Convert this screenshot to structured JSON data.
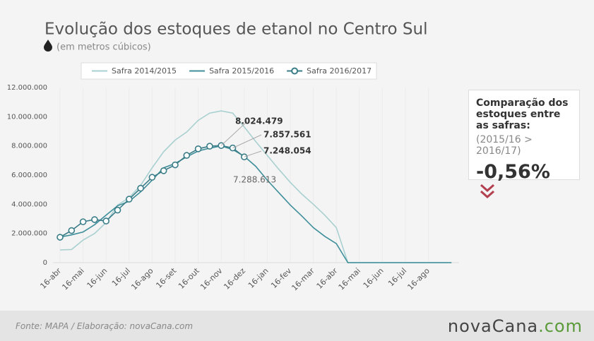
{
  "chart_data": {
    "type": "line",
    "title": "Evolução dos estoques de etanol no Centro Sul",
    "subtitle": "(em metros cúbicos)",
    "categories": [
      "16-abr",
      null,
      "16-mai",
      null,
      "16-jun",
      null,
      "16-jul",
      null,
      "16-ago",
      null,
      "16-set",
      null,
      "16-out",
      null,
      "16-nov",
      null,
      "16-dez",
      null,
      "16-jan",
      null,
      "16-fev",
      null,
      "16-mar",
      null,
      "16-abr",
      null,
      "16-mai",
      null,
      "16-jun",
      null,
      "16-jul",
      null,
      "16-ago",
      null,
      null
    ],
    "ylim": [
      0,
      12000000
    ],
    "yticks": [
      0,
      {
        "value": 2000000,
        "label": "2.000.000"
      },
      {
        "value": 4000000,
        "label": "4.000.000"
      },
      {
        "value": 6000000,
        "label": "6.000.000"
      },
      {
        "value": 8000000,
        "label": "8.000.000"
      },
      {
        "value": 10000000,
        "label": "10.000.000"
      },
      {
        "value": 12000000,
        "label": "12.000.000"
      }
    ],
    "grid": "x",
    "legend": "top",
    "series": [
      {
        "name": "Safra 2014/2015",
        "color": "#a9d0d0",
        "marker": false,
        "values": [
          870000,
          900000,
          1550000,
          2000000,
          2750000,
          3950000,
          4450000,
          5300000,
          6500000,
          7600000,
          8400000,
          8950000,
          9750000,
          10250000,
          10400000,
          10250000,
          9300000,
          8300000,
          7350000,
          6400000,
          5500000,
          4700000,
          4000000,
          3250000,
          2400000,
          0,
          0,
          0,
          0,
          0,
          0,
          0,
          0,
          0,
          0
        ]
      },
      {
        "name": "Safra 2015/2016",
        "color": "#3f8f9a",
        "marker": false,
        "values": [
          1750000,
          1900000,
          2100000,
          2600000,
          3250000,
          3900000,
          4200000,
          4850000,
          5650000,
          6500000,
          6800000,
          7250000,
          7650000,
          7850000,
          8000000,
          7750000,
          7288613,
          6600000,
          5650000,
          4800000,
          3950000,
          3200000,
          2400000,
          1800000,
          1300000,
          0,
          0,
          0,
          0,
          0,
          0,
          0,
          0,
          0,
          0
        ],
        "value_labels": [
          null,
          null,
          null,
          null,
          null,
          null,
          null,
          null,
          null,
          null,
          null,
          null,
          null,
          null,
          null,
          null,
          "7.288.613",
          null,
          null,
          null,
          null,
          null,
          null,
          null,
          null,
          null,
          null,
          null,
          null,
          null,
          null,
          null,
          null,
          null,
          null
        ]
      },
      {
        "name": "Safra 2016/2017",
        "color": "#3a7d88",
        "marker": true,
        "values": [
          1740000,
          2200000,
          2800000,
          2950000,
          2850000,
          3600000,
          4350000,
          5100000,
          5850000,
          6300000,
          6700000,
          7350000,
          7800000,
          7980000,
          8024479,
          7857561,
          7248054,
          null,
          null,
          null,
          null,
          null,
          null,
          null,
          null,
          null,
          null,
          null,
          null,
          null,
          null,
          null,
          null,
          null,
          null
        ],
        "value_labels": [
          null,
          null,
          null,
          null,
          null,
          null,
          null,
          null,
          null,
          null,
          null,
          null,
          null,
          null,
          "8.024.479",
          "7.857.561",
          "7.248.054",
          null,
          null,
          null,
          null,
          null,
          null,
          null,
          null,
          null,
          null,
          null,
          null,
          null,
          null,
          null,
          null,
          null,
          null
        ]
      }
    ]
  },
  "comparison": {
    "heading": "Comparação dos estoques entre as safras:",
    "note": "(2015/16 > 2016/17)",
    "value": "-0,56%"
  },
  "footer": {
    "source": "Fonte: MAPA  / Elaboração: novaCana.com",
    "logo": [
      "novaCana",
      ".com"
    ]
  }
}
